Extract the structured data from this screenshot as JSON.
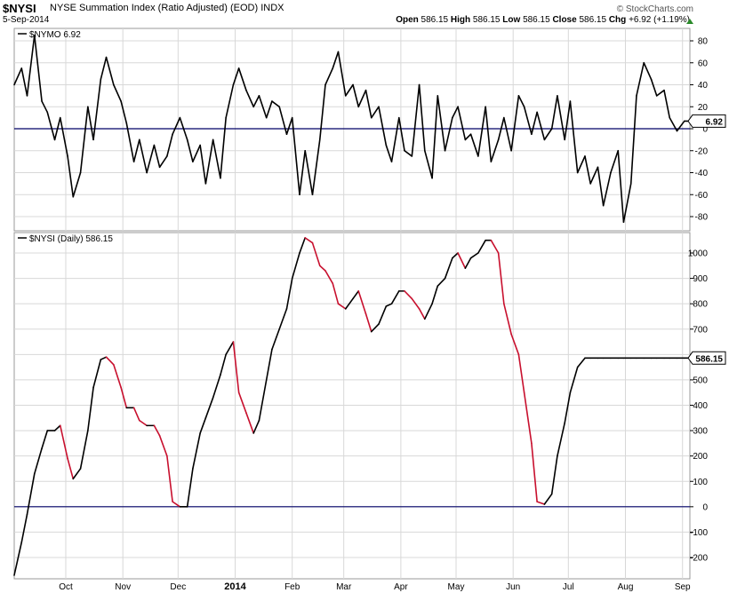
{
  "header": {
    "symbol": "$NYSI",
    "name": "NYSE Summation Index (Ratio Adjusted) (EOD)",
    "exchange": "INDX",
    "date": "5-Sep-2014",
    "brand": "© StockCharts.com",
    "open_label": "Open",
    "open": "586.15",
    "high_label": "High",
    "high": "586.15",
    "low_label": "Low",
    "low": "586.15",
    "close_label": "Close",
    "close": "586.15",
    "chg_label": "Chg",
    "chg": "+6.92 (+1.19%)"
  },
  "colors": {
    "line": "#000000",
    "falling": "#c8102e",
    "zero_line": "#000066",
    "grid": "#d8d8d8",
    "up_arrow": "#2a8a2a"
  },
  "chart_data": [
    {
      "type": "line",
      "label": "$NYMO 6.92",
      "last_value": "6.92",
      "ylim": [
        -90,
        85
      ],
      "yticks": [
        80,
        60,
        40,
        20,
        0,
        -20,
        -40,
        -60,
        -80
      ],
      "ytick_labels": [
        "80",
        "60",
        "40",
        "20",
        "0",
        "-20",
        "-40",
        "-60",
        "-80"
      ],
      "zero_line": 0,
      "x": [
        "2013-09-03",
        "2013-09-07",
        "2013-09-10",
        "2013-09-14",
        "2013-09-18",
        "2013-09-21",
        "2013-09-25",
        "2013-09-28",
        "2013-10-02",
        "2013-10-05",
        "2013-10-09",
        "2013-10-13",
        "2013-10-16",
        "2013-10-20",
        "2013-10-23",
        "2013-10-27",
        "2013-10-31",
        "2013-11-03",
        "2013-11-07",
        "2013-11-10",
        "2013-11-14",
        "2013-11-18",
        "2013-11-21",
        "2013-11-25",
        "2013-11-28",
        "2013-12-02",
        "2013-12-06",
        "2013-12-09",
        "2013-12-13",
        "2013-12-16",
        "2013-12-20",
        "2013-12-24",
        "2013-12-27",
        "2013-12-31",
        "2014-01-03",
        "2014-01-07",
        "2014-01-11",
        "2014-01-14",
        "2014-01-18",
        "2014-01-21",
        "2014-01-25",
        "2014-01-29",
        "2014-02-01",
        "2014-02-05",
        "2014-02-08",
        "2014-02-12",
        "2014-02-16",
        "2014-02-19",
        "2014-02-23",
        "2014-02-26",
        "2014-03-02",
        "2014-03-06",
        "2014-03-09",
        "2014-03-13",
        "2014-03-16",
        "2014-03-20",
        "2014-03-24",
        "2014-03-27",
        "2014-03-31",
        "2014-04-03",
        "2014-04-07",
        "2014-04-11",
        "2014-04-14",
        "2014-04-18",
        "2014-04-21",
        "2014-04-25",
        "2014-04-29",
        "2014-05-02",
        "2014-05-06",
        "2014-05-09",
        "2014-05-13",
        "2014-05-17",
        "2014-05-20",
        "2014-05-24",
        "2014-05-27",
        "2014-05-31",
        "2014-06-04",
        "2014-06-07",
        "2014-06-11",
        "2014-06-14",
        "2014-06-18",
        "2014-06-22",
        "2014-06-25",
        "2014-06-29",
        "2014-07-02",
        "2014-07-06",
        "2014-07-10",
        "2014-07-13",
        "2014-07-17",
        "2014-07-20",
        "2014-07-24",
        "2014-07-28",
        "2014-07-31",
        "2014-08-04",
        "2014-08-07",
        "2014-08-11",
        "2014-08-15",
        "2014-08-18",
        "2014-08-22",
        "2014-08-25",
        "2014-08-29",
        "2014-09-02",
        "2014-09-05"
      ],
      "values": [
        40,
        55,
        30,
        85,
        25,
        15,
        -10,
        10,
        -25,
        -62,
        -40,
        20,
        -10,
        45,
        65,
        40,
        25,
        5,
        -30,
        -10,
        -40,
        -15,
        -35,
        -25,
        -5,
        10,
        -10,
        -30,
        -15,
        -50,
        -10,
        -45,
        10,
        40,
        55,
        35,
        20,
        30,
        10,
        25,
        20,
        -5,
        10,
        -60,
        -20,
        -60,
        -10,
        40,
        55,
        70,
        30,
        40,
        20,
        35,
        10,
        20,
        -15,
        -30,
        10,
        -20,
        -25,
        40,
        -20,
        -45,
        30,
        -20,
        10,
        20,
        -10,
        -5,
        -25,
        20,
        -30,
        -10,
        10,
        -20,
        30,
        20,
        -5,
        15,
        -10,
        0,
        30,
        -10,
        25,
        -40,
        -25,
        -50,
        -35,
        -70,
        -40,
        -20,
        -85,
        -50,
        30,
        60,
        45,
        30,
        35,
        10,
        -2,
        6.92,
        6.92
      ],
      "x_labels": [
        {
          "label": "Oct",
          "date": "2013-10-01"
        },
        {
          "label": "Nov",
          "date": "2013-11-01"
        },
        {
          "label": "Dec",
          "date": "2013-12-01"
        },
        {
          "label": "2014",
          "date": "2014-01-01"
        },
        {
          "label": "Feb",
          "date": "2014-02-01"
        },
        {
          "label": "Mar",
          "date": "2014-03-01"
        },
        {
          "label": "Apr",
          "date": "2014-04-01"
        },
        {
          "label": "May",
          "date": "2014-05-01"
        },
        {
          "label": "Jun",
          "date": "2014-06-01"
        },
        {
          "label": "Jul",
          "date": "2014-07-01"
        },
        {
          "label": "Aug",
          "date": "2014-08-01"
        },
        {
          "label": "Sep",
          "date": "2014-09-01"
        }
      ]
    },
    {
      "type": "line",
      "label": "$NYSI (Daily) 586.15",
      "last_value": "586.15",
      "ylim": [
        -270,
        1090
      ],
      "yticks": [
        1000,
        900,
        800,
        700,
        600,
        500,
        400,
        300,
        200,
        100,
        0,
        -100,
        -200
      ],
      "ytick_labels": [
        "1000",
        "900",
        "800",
        "700",
        "600",
        "500",
        "400",
        "300",
        "200",
        "100",
        "0",
        "-100",
        "-200"
      ],
      "zero_line": 0,
      "grid": true,
      "x": [
        "2013-09-03",
        "2013-09-07",
        "2013-09-10",
        "2013-09-14",
        "2013-09-18",
        "2013-09-21",
        "2013-09-25",
        "2013-09-28",
        "2013-10-02",
        "2013-10-05",
        "2013-10-09",
        "2013-10-13",
        "2013-10-16",
        "2013-10-20",
        "2013-10-23",
        "2013-10-27",
        "2013-10-31",
        "2013-11-03",
        "2013-11-07",
        "2013-11-10",
        "2013-11-14",
        "2013-11-18",
        "2013-11-21",
        "2013-11-25",
        "2013-11-28",
        "2013-12-02",
        "2013-12-06",
        "2013-12-09",
        "2013-12-13",
        "2013-12-16",
        "2013-12-20",
        "2013-12-24",
        "2013-12-27",
        "2013-12-31",
        "2014-01-03",
        "2014-01-07",
        "2014-01-11",
        "2014-01-14",
        "2014-01-18",
        "2014-01-21",
        "2014-01-25",
        "2014-01-29",
        "2014-02-01",
        "2014-02-05",
        "2014-02-08",
        "2014-02-12",
        "2014-02-16",
        "2014-02-19",
        "2014-02-23",
        "2014-02-26",
        "2014-03-02",
        "2014-03-06",
        "2014-03-09",
        "2014-03-13",
        "2014-03-16",
        "2014-03-20",
        "2014-03-24",
        "2014-03-27",
        "2014-03-31",
        "2014-04-03",
        "2014-04-07",
        "2014-04-11",
        "2014-04-14",
        "2014-04-18",
        "2014-04-21",
        "2014-04-25",
        "2014-04-29",
        "2014-05-02",
        "2014-05-06",
        "2014-05-09",
        "2014-05-13",
        "2014-05-17",
        "2014-05-20",
        "2014-05-24",
        "2014-05-27",
        "2014-05-31",
        "2014-06-04",
        "2014-06-07",
        "2014-06-11",
        "2014-06-14",
        "2014-06-18",
        "2014-06-22",
        "2014-06-25",
        "2014-06-29",
        "2014-07-02",
        "2014-07-06",
        "2014-07-10",
        "2014-07-13",
        "2014-07-17",
        "2014-07-20",
        "2014-07-24",
        "2014-07-28",
        "2014-07-31",
        "2014-08-04",
        "2014-08-07",
        "2014-08-11",
        "2014-08-15",
        "2014-08-18",
        "2014-08-22",
        "2014-08-25",
        "2014-08-29",
        "2014-09-02",
        "2014-09-05"
      ],
      "values": [
        -270,
        -140,
        -30,
        130,
        230,
        300,
        300,
        320,
        190,
        110,
        150,
        300,
        470,
        580,
        590,
        560,
        470,
        390,
        390,
        340,
        320,
        320,
        280,
        200,
        20,
        0,
        0,
        150,
        290,
        350,
        430,
        520,
        600,
        650,
        450,
        370,
        290,
        340,
        500,
        620,
        700,
        780,
        900,
        1000,
        1060,
        1040,
        950,
        930,
        880,
        800,
        780,
        820,
        850,
        760,
        690,
        720,
        790,
        800,
        850,
        850,
        820,
        780,
        740,
        800,
        870,
        900,
        980,
        1000,
        940,
        980,
        1000,
        1050,
        1050,
        1000,
        800,
        680,
        600,
        450,
        250,
        20,
        10,
        50,
        200,
        330,
        450,
        550,
        586,
        586,
        586,
        586,
        586,
        586,
        586,
        586,
        586,
        586,
        586,
        586,
        586,
        586,
        586,
        586,
        586
      ]
    }
  ]
}
